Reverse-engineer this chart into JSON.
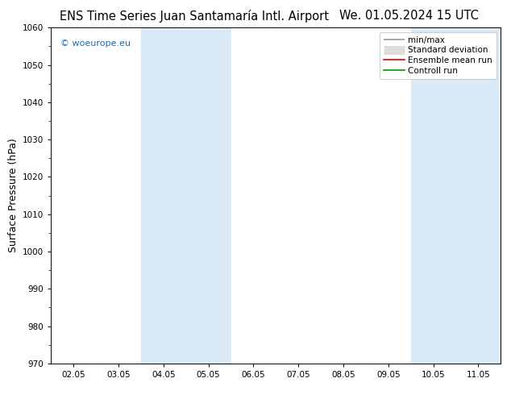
{
  "title_left": "ENS Time Series Juan Santamaría Intl. Airport",
  "title_right": "We. 01.05.2024 15 UTC",
  "ylabel": "Surface Pressure (hPa)",
  "ylim": [
    970,
    1060
  ],
  "yticks": [
    970,
    980,
    990,
    1000,
    1010,
    1020,
    1030,
    1040,
    1050,
    1060
  ],
  "xtick_positions": [
    0,
    1,
    2,
    3,
    4,
    5,
    6,
    7,
    8,
    9
  ],
  "xtick_labels": [
    "02.05",
    "03.05",
    "04.05",
    "05.05",
    "06.05",
    "07.05",
    "08.05",
    "09.05",
    "10.05",
    "11.05"
  ],
  "xlim": [
    -0.5,
    9.5
  ],
  "shaded_bands": [
    {
      "xstart": 1.5,
      "xend": 3.5,
      "color": "#daeaf7"
    },
    {
      "xstart": 7.5,
      "xend": 9.5,
      "color": "#daeaf7"
    }
  ],
  "watermark": "© woeurope.eu",
  "watermark_color": "#1a6cb5",
  "legend_entries": [
    {
      "label": "min/max",
      "color": "#999999",
      "lw": 1.2
    },
    {
      "label": "Standard deviation",
      "color": "#cccccc",
      "lw": 6
    },
    {
      "label": "Ensemble mean run",
      "color": "#dd0000",
      "lw": 1.2
    },
    {
      "label": "Controll run",
      "color": "#009900",
      "lw": 1.2
    }
  ],
  "background_color": "#ffffff",
  "plot_bg_color": "#ffffff",
  "title_fontsize": 10.5,
  "tick_fontsize": 7.5,
  "ylabel_fontsize": 9,
  "legend_fontsize": 7.5
}
